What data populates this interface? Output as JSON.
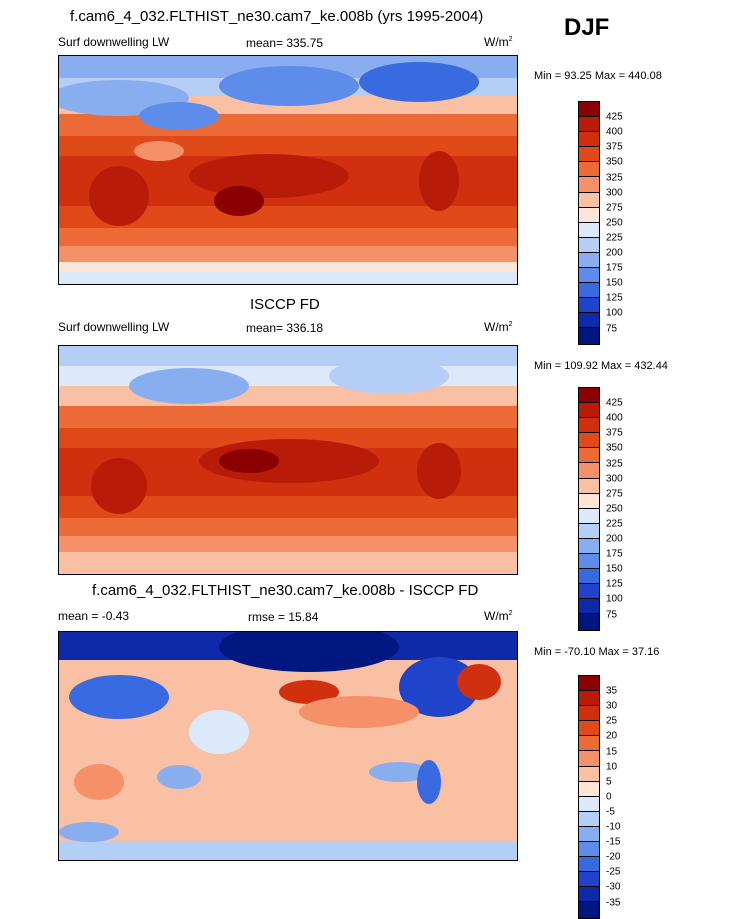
{
  "season": "DJF",
  "panels": [
    {
      "title": "f.cam6_4_032.FLTHIST_ne30.cam7_ke.008b (yrs 1995-2004)",
      "left_label": "Surf downwelling LW",
      "center_label": "mean= 335.75",
      "units": "W/m",
      "units_sup": "2",
      "minmax": "Min =  93.25 Max = 440.08",
      "colorbar_ticks": [
        "425",
        "400",
        "375",
        "350",
        "325",
        "300",
        "275",
        "250",
        "225",
        "200",
        "175",
        "150",
        "125",
        "100",
        "75"
      ],
      "colors": [
        "#8b0000",
        "#b81c08",
        "#d0300e",
        "#e04a18",
        "#ec6a36",
        "#f59068",
        "#fac0a4",
        "#fde6d8",
        "#dce9fb",
        "#b5cef5",
        "#88aef0",
        "#5e8cea",
        "#3a6ae0",
        "#1f44c9",
        "#0e2aa8",
        "#001680"
      ]
    },
    {
      "title": "ISCCP FD",
      "left_label": "Surf downwelling LW",
      "center_label": "mean= 336.18",
      "units": "W/m",
      "units_sup": "2",
      "minmax": "Min = 109.92 Max = 432.44",
      "colorbar_ticks": [
        "425",
        "400",
        "375",
        "350",
        "325",
        "300",
        "275",
        "250",
        "225",
        "200",
        "175",
        "150",
        "125",
        "100",
        "75"
      ],
      "colors": [
        "#8b0000",
        "#b81c08",
        "#d0300e",
        "#e04a18",
        "#ec6a36",
        "#f59068",
        "#fac0a4",
        "#fde6d8",
        "#dce9fb",
        "#b5cef5",
        "#88aef0",
        "#5e8cea",
        "#3a6ae0",
        "#1f44c9",
        "#0e2aa8",
        "#001680"
      ]
    },
    {
      "title": "f.cam6_4_032.FLTHIST_ne30.cam7_ke.008b - ISCCP FD",
      "left_label": "mean =  -0.43",
      "center_label": "rmse =  15.84",
      "units": "W/m",
      "units_sup": "2",
      "minmax": "Min = -70.10 Max =  37.16",
      "colorbar_ticks": [
        "35",
        "30",
        "25",
        "20",
        "15",
        "10",
        "5",
        "0",
        "-5",
        "-10",
        "-15",
        "-20",
        "-25",
        "-30",
        "-35"
      ],
      "colors": [
        "#8b0000",
        "#b81c08",
        "#d0300e",
        "#e04a18",
        "#ec6a36",
        "#f59068",
        "#fac0a4",
        "#fde6d8",
        "#dce9fb",
        "#b5cef5",
        "#88aef0",
        "#5e8cea",
        "#3a6ae0",
        "#1f44c9",
        "#0e2aa8",
        "#001680"
      ]
    }
  ]
}
